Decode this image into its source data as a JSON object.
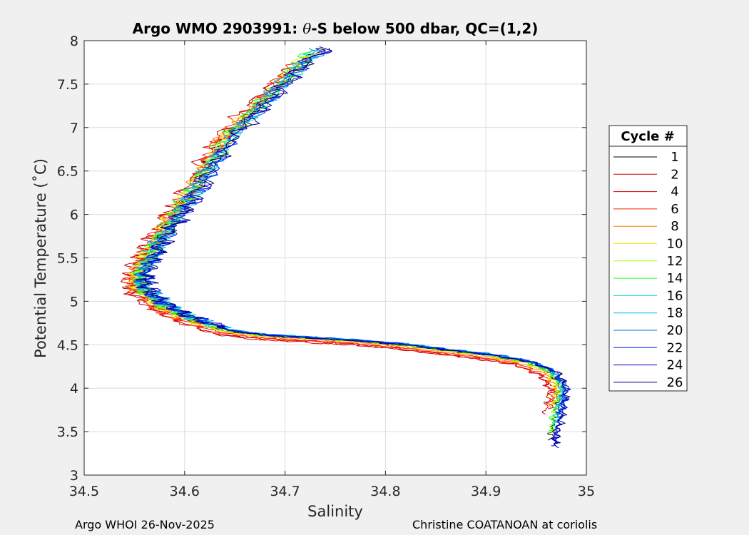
{
  "chart_data": {
    "type": "line",
    "title_prefix": "Argo WMO 2903991: ",
    "title_symbol": "θ",
    "title_suffix": "-S below 500 dbar,  QC=(1,2)",
    "xlabel": "Salinity",
    "ylabel": "Potential Temperature (˚C)",
    "xlim": [
      34.5,
      35
    ],
    "ylim": [
      3,
      8
    ],
    "xticks": [
      "34.5",
      "34.6",
      "34.7",
      "34.8",
      "34.9",
      "35"
    ],
    "yticks": [
      "3",
      "3.5",
      "4",
      "4.5",
      "5",
      "5.5",
      "6",
      "6.5",
      "7",
      "7.5",
      "8"
    ],
    "grid": true,
    "legend": {
      "title": "Cycle #",
      "placement": "outside-right",
      "entries": [
        "1",
        "2",
        "4",
        "6",
        "8",
        "10",
        "12",
        "14",
        "16",
        "18",
        "20",
        "22",
        "24",
        "26"
      ]
    },
    "series_base": [
      [
        34.735,
        7.92
      ],
      [
        34.705,
        7.6
      ],
      [
        34.675,
        7.25
      ],
      [
        34.645,
        6.9
      ],
      [
        34.625,
        6.55
      ],
      [
        34.605,
        6.2
      ],
      [
        34.59,
        5.95
      ],
      [
        34.575,
        5.7
      ],
      [
        34.565,
        5.5
      ],
      [
        34.556,
        5.3
      ],
      [
        34.558,
        5.15
      ],
      [
        34.575,
        4.97
      ],
      [
        34.6,
        4.82
      ],
      [
        34.64,
        4.66
      ],
      [
        34.68,
        4.6
      ],
      [
        34.73,
        4.57
      ],
      [
        34.78,
        4.53
      ],
      [
        34.82,
        4.49
      ],
      [
        34.86,
        4.43
      ],
      [
        34.9,
        4.38
      ],
      [
        34.94,
        4.3
      ],
      [
        34.965,
        4.18
      ],
      [
        34.975,
        4.0
      ],
      [
        34.972,
        3.8
      ],
      [
        34.968,
        3.6
      ],
      [
        34.965,
        3.45
      ],
      [
        34.963,
        3.32
      ]
    ],
    "series": [
      {
        "name": "1",
        "color": "#000000",
        "ds": 0.0,
        "dt": 0.0,
        "sal_max": 34.732,
        "t_min": 3.4
      },
      {
        "name": "2",
        "color": "#c80000",
        "ds": -0.012,
        "dt": -0.05,
        "sal_max": 34.7,
        "t_min": 3.7
      },
      {
        "name": "4",
        "color": "#e00000",
        "ds": -0.009,
        "dt": -0.08,
        "sal_max": 34.705,
        "t_min": 3.75
      },
      {
        "name": "6",
        "color": "#ff2000",
        "ds": -0.007,
        "dt": -0.04,
        "sal_max": 34.708,
        "t_min": 3.8
      },
      {
        "name": "8",
        "color": "#ff8000",
        "ds": -0.005,
        "dt": -0.02,
        "sal_max": 34.712,
        "t_min": 3.75
      },
      {
        "name": "10",
        "color": "#ffdf00",
        "ds": -0.004,
        "dt": 0.0,
        "sal_max": 34.715,
        "t_min": 3.8
      },
      {
        "name": "12",
        "color": "#a0ff00",
        "ds": -0.002,
        "dt": 0.01,
        "sal_max": 34.718,
        "t_min": 3.48
      },
      {
        "name": "14",
        "color": "#20ff20",
        "ds": -0.001,
        "dt": 0.02,
        "sal_max": 34.72,
        "t_min": 3.5
      },
      {
        "name": "16",
        "color": "#00e0c0",
        "ds": 0.001,
        "dt": 0.03,
        "sal_max": 34.722,
        "t_min": 3.55
      },
      {
        "name": "18",
        "color": "#00b0ff",
        "ds": 0.002,
        "dt": 0.04,
        "sal_max": 34.724,
        "t_min": 3.6
      },
      {
        "name": "20",
        "color": "#0070e0",
        "ds": 0.003,
        "dt": 0.03,
        "sal_max": 34.726,
        "t_min": 3.65
      },
      {
        "name": "22",
        "color": "#0020ff",
        "ds": 0.004,
        "dt": 0.02,
        "sal_max": 34.728,
        "t_min": 3.35
      },
      {
        "name": "24",
        "color": "#0000c8",
        "ds": 0.005,
        "dt": 0.01,
        "sal_max": 34.733,
        "t_min": 3.33
      },
      {
        "name": "26",
        "color": "#00008c",
        "ds": 0.006,
        "dt": 0.0,
        "sal_max": 34.736,
        "t_min": 3.3
      }
    ]
  },
  "footer": {
    "left": "Argo WHOI 26-Nov-2025",
    "right": "Christine COATANOAN at coriolis"
  }
}
